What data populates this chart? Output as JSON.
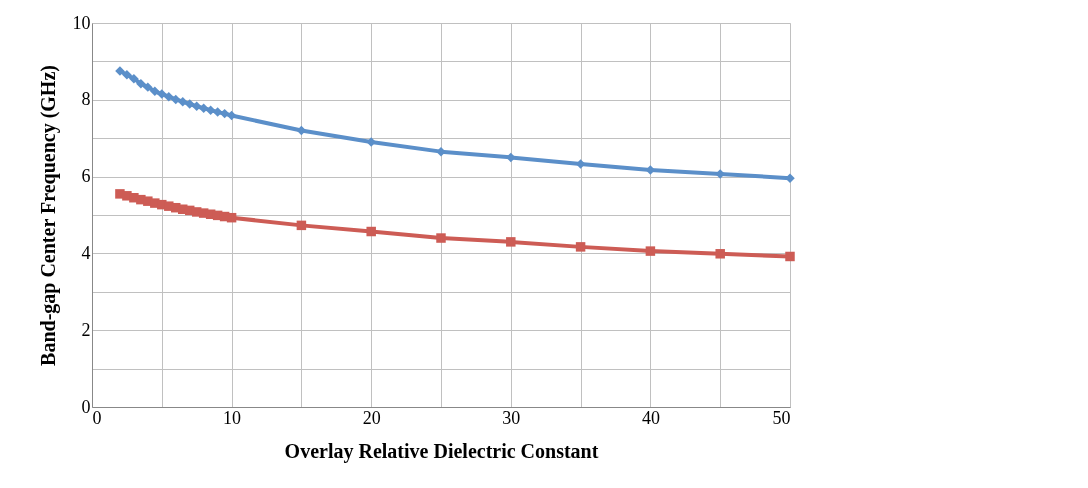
{
  "chart_data": {
    "type": "line",
    "xlabel": "Overlay Relative Dielectric Constant",
    "ylabel": "Band-gap Center Frequency (GHz)",
    "x": [
      2,
      2.5,
      3,
      3.5,
      4,
      4.5,
      5,
      5.5,
      6,
      6.5,
      7,
      7.5,
      8,
      8.5,
      9,
      9.5,
      10,
      15,
      20,
      25,
      30,
      35,
      40,
      45,
      50
    ],
    "series": [
      {
        "color": "#5b8fc9",
        "marker": "diamond",
        "values": [
          8.75,
          8.65,
          8.55,
          8.42,
          8.33,
          8.22,
          8.15,
          8.08,
          8.01,
          7.95,
          7.89,
          7.83,
          7.78,
          7.73,
          7.68,
          7.64,
          7.59,
          7.2,
          6.9,
          6.65,
          6.5,
          6.33,
          6.17,
          6.07,
          5.96
        ]
      },
      {
        "color": "#cd5c55",
        "marker": "square",
        "values": [
          5.55,
          5.5,
          5.45,
          5.4,
          5.36,
          5.31,
          5.27,
          5.23,
          5.19,
          5.15,
          5.12,
          5.08,
          5.05,
          5.02,
          4.99,
          4.96,
          4.93,
          4.73,
          4.57,
          4.4,
          4.3,
          4.17,
          4.06,
          3.99,
          3.92
        ]
      }
    ],
    "xlim": [
      0,
      50
    ],
    "xticks": [
      0,
      {
        "value": 5,
        "label": null
      },
      10,
      {
        "value": 15,
        "label": null
      },
      20,
      {
        "value": 25,
        "label": null
      },
      30,
      {
        "value": 35,
        "label": null
      },
      40,
      {
        "value": 45,
        "label": null
      },
      50
    ],
    "ylim": [
      0,
      10
    ],
    "yticks": [
      0,
      {
        "value": 1,
        "label": null
      },
      2,
      {
        "value": 3,
        "label": null
      },
      4,
      {
        "value": 5,
        "label": null
      },
      6,
      {
        "value": 7,
        "label": null
      },
      8,
      {
        "value": 9,
        "label": null
      },
      10
    ],
    "grid": true,
    "legend": false,
    "line_style": "solid"
  }
}
